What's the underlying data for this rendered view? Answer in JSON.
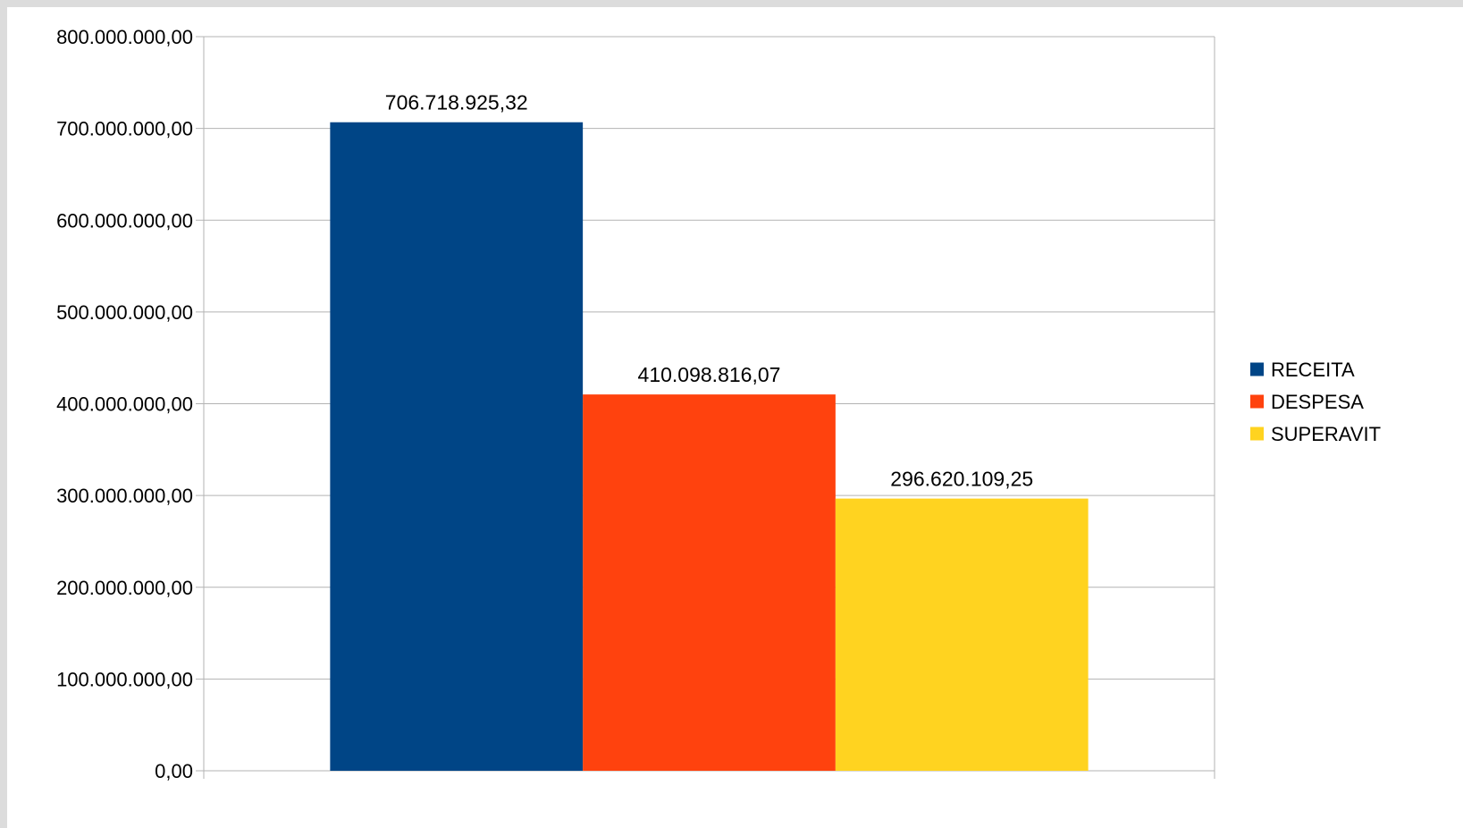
{
  "chart_data": {
    "type": "bar",
    "categories": [
      ""
    ],
    "series": [
      {
        "name": "RECEITA",
        "values": [
          706718925.32
        ],
        "label": "706.718.925,32",
        "color": "#004586"
      },
      {
        "name": "DESPESA",
        "values": [
          410098816.07
        ],
        "label": "410.098.816,07",
        "color": "#ff420e"
      },
      {
        "name": "SUPERAVIT",
        "values": [
          296620109.25
        ],
        "label": "296.620.109,25",
        "color": "#ffd320"
      }
    ],
    "title": "",
    "xlabel": "",
    "ylabel": "",
    "ylim": [
      0,
      800000000
    ],
    "yticks": [
      0,
      100000000,
      200000000,
      300000000,
      400000000,
      500000000,
      600000000,
      700000000,
      800000000
    ],
    "ytick_labels": [
      "0,00",
      "100.000.000,00",
      "200.000.000,00",
      "300.000.000,00",
      "400.000.000,00",
      "500.000.000,00",
      "600.000.000,00",
      "700.000.000,00",
      "800.000.000,00"
    ],
    "grid": true,
    "legend_position": "right",
    "colors": {
      "grid": "#b3b3b3",
      "axis": "#b3b3b3",
      "frame_background": "#dcdcdc"
    }
  }
}
